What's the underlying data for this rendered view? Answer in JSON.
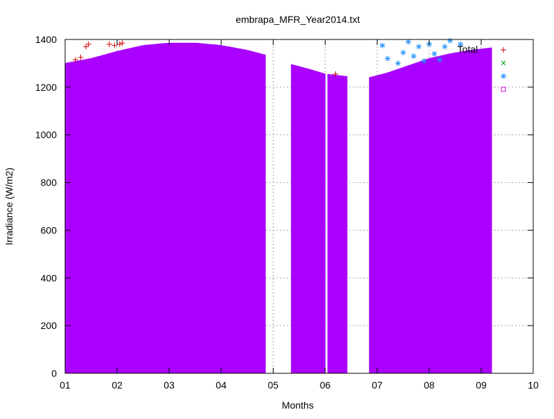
{
  "chart_data": {
    "type": "area",
    "title": "embrapa_MFR_Year2014.txt",
    "xlabel": "Months",
    "ylabel": "Irradiance (W/m2)",
    "xlim": [
      1,
      10
    ],
    "ylim": [
      0,
      1400
    ],
    "x_tick_labels": [
      "01",
      "02",
      "03",
      "04",
      "05",
      "06",
      "07",
      "08",
      "09",
      "10"
    ],
    "y_ticks": [
      0,
      200,
      400,
      600,
      800,
      1000,
      1200,
      1400
    ],
    "grid": true,
    "legend_position": "top-right",
    "legend": [
      {
        "label": "Total",
        "marker": "+",
        "color": "#cc0000"
      },
      {
        "label": "",
        "marker": "x",
        "color": "#009900"
      },
      {
        "label": "",
        "marker": "*",
        "color": "#1e90ff"
      },
      {
        "label": "",
        "marker": "square",
        "color": "#cc00cc"
      }
    ],
    "fill_color": "#aa00ff",
    "series": [
      {
        "name": "Total",
        "x": [
          1.0,
          1.5,
          2.0,
          2.5,
          3.0,
          3.5,
          4.0,
          4.5,
          4.85,
          5.35,
          5.7,
          6.0,
          6.4,
          6.85,
          7.2,
          7.6,
          8.0,
          8.4,
          8.8,
          9.2
        ],
        "y": [
          1300,
          1320,
          1350,
          1375,
          1385,
          1385,
          1375,
          1355,
          1335,
          1295,
          1275,
          1255,
          1245,
          1240,
          1260,
          1290,
          1320,
          1340,
          1355,
          1365
        ],
        "gaps": [
          [
            4.85,
            5.35
          ],
          [
            6.0,
            6.05
          ],
          [
            6.42,
            6.85
          ]
        ]
      },
      {
        "name": "",
        "x": [
          1.2,
          1.3,
          1.4,
          1.45,
          1.85,
          1.95,
          2.05,
          2.1,
          6.2
        ],
        "y": [
          1315,
          1325,
          1370,
          1380,
          1380,
          1375,
          1380,
          1385,
          1255
        ]
      },
      {
        "name": "",
        "x": [
          7.1,
          7.2,
          7.4,
          7.5,
          7.6,
          7.7,
          7.8,
          7.9,
          8.0,
          8.1,
          8.2,
          8.3,
          8.4,
          8.6
        ],
        "y": [
          1375,
          1320,
          1300,
          1345,
          1390,
          1330,
          1370,
          1310,
          1380,
          1340,
          1315,
          1370,
          1395,
          1380
        ]
      }
    ]
  }
}
